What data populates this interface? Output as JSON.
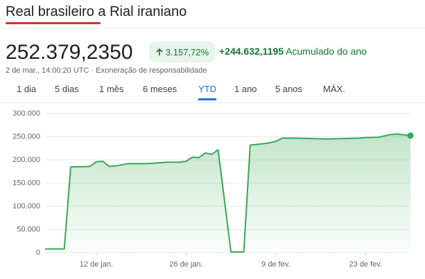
{
  "header": {
    "title": "Real brasileiro a Rial iraniano",
    "price": "252.379,2350",
    "change_percent": "3.157,72%",
    "change_abs": "+244.632,1195",
    "change_period": "Acumulado do ano",
    "timestamp": "2 de mar., 14:00:20 UTC",
    "disclaimer": "Exoneração de responsabilidade"
  },
  "tabs": [
    "1 dia",
    "5 dias",
    "1 mês",
    "6 meses",
    "YTD",
    "1 ano",
    "5 anos",
    "MÁX."
  ],
  "active_tab": "YTD",
  "chart_data": {
    "type": "line",
    "color": "#34a853",
    "grid": true,
    "x": [
      4,
      7,
      8,
      11,
      12,
      13,
      14,
      15,
      17,
      20,
      21,
      23,
      25,
      26,
      27,
      28,
      29,
      30,
      31,
      33,
      35,
      36,
      38,
      39,
      40,
      41,
      43,
      46,
      48,
      50,
      53,
      54,
      56,
      58,
      59,
      61
    ],
    "values": [
      8000,
      8000,
      185000,
      186000,
      196000,
      197000,
      186000,
      187000,
      192000,
      192000,
      193000,
      195000,
      195000,
      197000,
      206000,
      205000,
      215000,
      212000,
      222000,
      1500,
      1500,
      232000,
      235000,
      237000,
      240000,
      247000,
      247000,
      246000,
      245000,
      246000,
      247000,
      248000,
      249000,
      255000,
      255500,
      252379
    ],
    "xlim": [
      4,
      61
    ],
    "xticks": [
      {
        "value": 12,
        "label": "12 de jan."
      },
      {
        "value": 26,
        "label": "26 de jan."
      },
      {
        "value": 40,
        "label": "9 de fev."
      },
      {
        "value": 54,
        "label": "23 de fev."
      }
    ],
    "ylim": [
      0,
      300000
    ],
    "yticks": [
      0,
      {
        "value": 50000,
        "label": "50.000"
      },
      {
        "value": 100000,
        "label": "100.000"
      },
      {
        "value": 150000,
        "label": "150.000"
      },
      {
        "value": 200000,
        "label": "200.000"
      },
      {
        "value": 250000,
        "label": "250.000"
      },
      {
        "value": 300000,
        "label": "300.000"
      }
    ]
  }
}
